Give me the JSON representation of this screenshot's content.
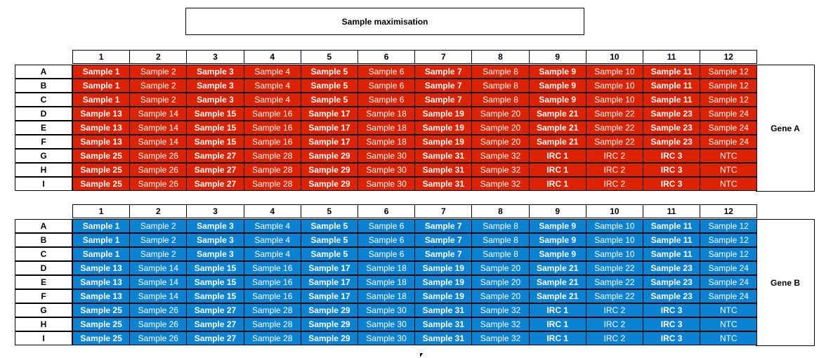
{
  "title": "Sample maximisation",
  "columns": [
    "1",
    "2",
    "3",
    "4",
    "5",
    "6",
    "7",
    "8",
    "9",
    "10",
    "11",
    "12"
  ],
  "rows": [
    "A",
    "B",
    "C",
    "D",
    "E",
    "F",
    "G",
    "H",
    "I"
  ],
  "plates": [
    {
      "gene": "Gene A",
      "color": "#dd2200",
      "cells": [
        [
          "Sample 1",
          "Sample 2",
          "Sample 3",
          "Sample 4",
          "Sample 5",
          "Sample 6",
          "Sample 7",
          "Sample 8",
          "Sample 9",
          "Sample 10",
          "Sample 11",
          "Sample 12"
        ],
        [
          "Sample 1",
          "Sample 2",
          "Sample 3",
          "Sample 4",
          "Sample 5",
          "Sample 6",
          "Sample 7",
          "Sample 8",
          "Sample 9",
          "Sample 10",
          "Sample 11",
          "Sample 12"
        ],
        [
          "Sample 1",
          "Sample 2",
          "Sample 3",
          "Sample 4",
          "Sample 5",
          "Sample 6",
          "Sample 7",
          "Sample 8",
          "Sample 9",
          "Sample 10",
          "Sample 11",
          "Sample 12"
        ],
        [
          "Sample 13",
          "Sample 14",
          "Sample 15",
          "Sample 16",
          "Sample 17",
          "Sample 18",
          "Sample 19",
          "Sample 20",
          "Sample 21",
          "Sample 22",
          "Sample 23",
          "Sample 24"
        ],
        [
          "Sample 13",
          "Sample 14",
          "Sample 15",
          "Sample 16",
          "Sample 17",
          "Sample 18",
          "Sample 19",
          "Sample 20",
          "Sample 21",
          "Sample 22",
          "Sample 23",
          "Sample 24"
        ],
        [
          "Sample 13",
          "Sample 14",
          "Sample 15",
          "Sample 16",
          "Sample 17",
          "Sample 18",
          "Sample 19",
          "Sample 20",
          "Sample 21",
          "Sample 22",
          "Sample 23",
          "Sample 24"
        ],
        [
          "Sample 25",
          "Sample 26",
          "Sample 27",
          "Sample 28",
          "Sample 29",
          "Sample 30",
          "Sample 31",
          "Sample 32",
          "IRC 1",
          "IRC 2",
          "IRC 3",
          "NTC"
        ],
        [
          "Sample 25",
          "Sample 26",
          "Sample 27",
          "Sample 28",
          "Sample 29",
          "Sample 30",
          "Sample 31",
          "Sample 32",
          "IRC 1",
          "IRC 2",
          "IRC 3",
          "NTC"
        ],
        [
          "Sample 25",
          "Sample 26",
          "Sample 27",
          "Sample 28",
          "Sample 29",
          "Sample 30",
          "Sample 31",
          "Sample 32",
          "IRC 1",
          "IRC 2",
          "IRC 3",
          "NTC"
        ]
      ]
    },
    {
      "gene": "Gene B",
      "color": "#0a82d2",
      "cells": [
        [
          "Sample 1",
          "Sample 2",
          "Sample 3",
          "Sample 4",
          "Sample 5",
          "Sample 6",
          "Sample 7",
          "Sample 8",
          "Sample 9",
          "Sample 10",
          "Sample 11",
          "Sample 12"
        ],
        [
          "Sample 1",
          "Sample 2",
          "Sample 3",
          "Sample 4",
          "Sample 5",
          "Sample 6",
          "Sample 7",
          "Sample 8",
          "Sample 9",
          "Sample 10",
          "Sample 11",
          "Sample 12"
        ],
        [
          "Sample 1",
          "Sample 2",
          "Sample 3",
          "Sample 4",
          "Sample 5",
          "Sample 6",
          "Sample 7",
          "Sample 8",
          "Sample 9",
          "Sample 10",
          "Sample 11",
          "Sample 12"
        ],
        [
          "Sample 13",
          "Sample 14",
          "Sample 15",
          "Sample 16",
          "Sample 17",
          "Sample 18",
          "Sample 19",
          "Sample 20",
          "Sample 21",
          "Sample 22",
          "Sample 23",
          "Sample 24"
        ],
        [
          "Sample 13",
          "Sample 14",
          "Sample 15",
          "Sample 16",
          "Sample 17",
          "Sample 18",
          "Sample 19",
          "Sample 20",
          "Sample 21",
          "Sample 22",
          "Sample 23",
          "Sample 24"
        ],
        [
          "Sample 13",
          "Sample 14",
          "Sample 15",
          "Sample 16",
          "Sample 17",
          "Sample 18",
          "Sample 19",
          "Sample 20",
          "Sample 21",
          "Sample 22",
          "Sample 23",
          "Sample 24"
        ],
        [
          "Sample 25",
          "Sample 26",
          "Sample 27",
          "Sample 28",
          "Sample 29",
          "Sample 30",
          "Sample 31",
          "Sample 32",
          "IRC 1",
          "IRC 2",
          "IRC 3",
          "NTC"
        ],
        [
          "Sample 25",
          "Sample 26",
          "Sample 27",
          "Sample 28",
          "Sample 29",
          "Sample 30",
          "Sample 31",
          "Sample 32",
          "IRC 1",
          "IRC 2",
          "IRC 3",
          "NTC"
        ],
        [
          "Sample 25",
          "Sample 26",
          "Sample 27",
          "Sample 28",
          "Sample 29",
          "Sample 30",
          "Sample 31",
          "Sample 32",
          "IRC 1",
          "IRC 2",
          "IRC 3",
          "NTC"
        ]
      ]
    }
  ]
}
